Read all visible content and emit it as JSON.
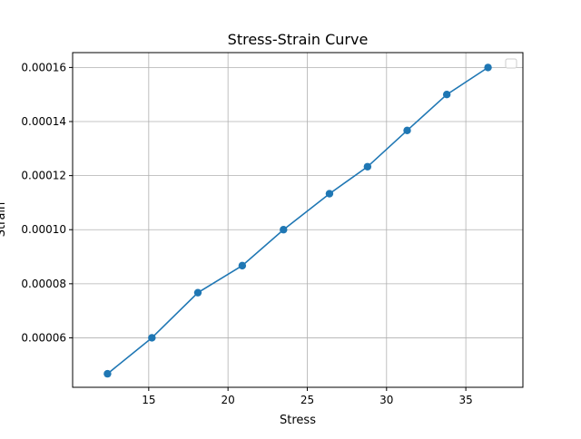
{
  "chart_data": {
    "type": "line",
    "title": "Stress-Strain Curve",
    "xlabel": "Stress",
    "ylabel": "Strain",
    "xlim": [
      10.2,
      38.6
    ],
    "ylim": [
      4.17e-05,
      0.0001655
    ],
    "x_ticks": [
      15,
      20,
      25,
      30,
      35
    ],
    "y_ticks": [
      6e-05,
      8e-05,
      0.0001,
      0.00012,
      0.00014,
      0.00016
    ],
    "x_tick_labels": [
      "15",
      "20",
      "25",
      "30",
      "35"
    ],
    "y_tick_labels": [
      "0.00006",
      "0.00008",
      "0.00010",
      "0.00012",
      "0.00014",
      "0.00016"
    ],
    "grid": true,
    "legend": "top-right (empty)",
    "series": [
      {
        "color": "#1f77b4",
        "marker": "circle",
        "x": [
          12.4,
          15.2,
          18.1,
          20.9,
          23.5,
          26.4,
          28.8,
          31.3,
          33.8,
          36.4
        ],
        "y": [
          4.67e-05,
          6e-05,
          7.67e-05,
          8.67e-05,
          0.0001,
          0.0001133,
          0.0001233,
          0.0001367,
          0.00015,
          0.00016
        ]
      }
    ]
  }
}
